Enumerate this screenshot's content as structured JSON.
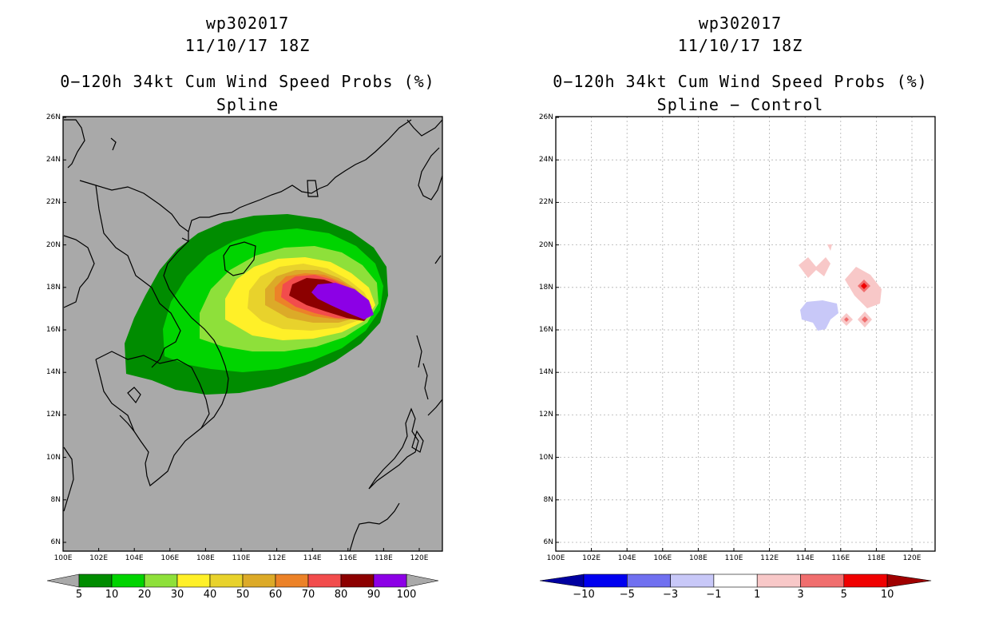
{
  "left_panel": {
    "storm_id": "wp302017",
    "datetime": "11/10/17 18Z",
    "title": "0−120h 34kt Cum Wind Speed Probs (%)",
    "subtitle": "Spline",
    "background_color": "#a9a9a9",
    "colorbar": {
      "labels": [
        "5",
        "10",
        "20",
        "30",
        "40",
        "50",
        "60",
        "70",
        "80",
        "90",
        "100"
      ],
      "colors": [
        "#008c00",
        "#00d400",
        "#8ee03a",
        "#fff028",
        "#e8d22c",
        "#dcaa28",
        "#ec8228",
        "#f24c4c",
        "#8c0000",
        "#8c00e6"
      ]
    }
  },
  "right_panel": {
    "storm_id": "wp302017",
    "datetime": "11/10/17 18Z",
    "title": "0−120h 34kt Cum Wind Speed Probs (%)",
    "subtitle": "Spline − Control",
    "background_color": "#ffffff",
    "colorbar": {
      "labels": [
        "−10",
        "−5",
        "−3",
        "−1",
        "1",
        "3",
        "5",
        "10"
      ],
      "colors": [
        "#0000a0",
        "#0000f0",
        "#7070f0",
        "#c8c8f8",
        "#ffffff",
        "#f8c8c8",
        "#f06e6e",
        "#f00000",
        "#a00000"
      ]
    }
  },
  "axes": {
    "lon_labels": [
      "100E",
      "102E",
      "104E",
      "106E",
      "108E",
      "110E",
      "112E",
      "114E",
      "116E",
      "118E",
      "120E"
    ],
    "lat_labels": [
      "26N",
      "24N",
      "22N",
      "20N",
      "18N",
      "16N",
      "14N",
      "12N",
      "10N",
      "8N",
      "6N"
    ]
  }
}
